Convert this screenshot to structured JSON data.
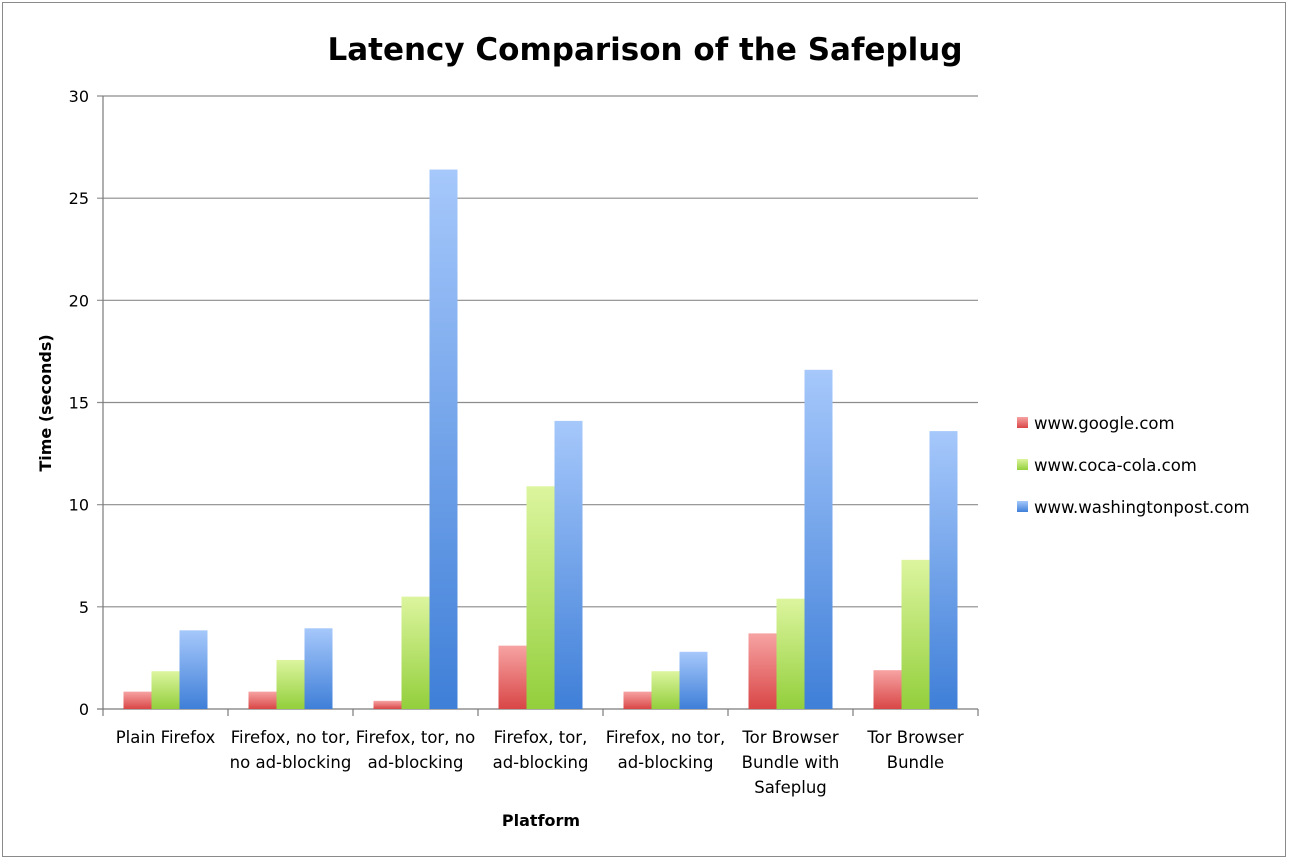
{
  "chart_data": {
    "type": "bar",
    "title": "Latency Comparison of the Safeplug",
    "xlabel": "Platform",
    "ylabel": "Time (seconds)",
    "ylim": [
      0,
      30
    ],
    "yticks": [
      "0",
      "5",
      "10",
      "15",
      "20",
      "25",
      "30"
    ],
    "grid": true,
    "legend_position": "right",
    "categories": [
      [
        "Plain Firefox"
      ],
      [
        "Firefox, no tor,",
        "no ad-blocking"
      ],
      [
        "Firefox, tor, no",
        "ad-blocking"
      ],
      [
        "Firefox, tor,",
        "ad-blocking"
      ],
      [
        "Firefox, no tor,",
        "ad-blocking"
      ],
      [
        "Tor Browser",
        "Bundle with",
        "Safeplug"
      ],
      [
        "Tor Browser",
        "Bundle"
      ]
    ],
    "series": [
      {
        "name": "www.google.com",
        "color_light": "#f7a3a3",
        "color_dark": "#d94646",
        "values": [
          0.85,
          0.85,
          0.4,
          3.1,
          0.85,
          3.7,
          1.9
        ]
      },
      {
        "name": "www.coca-cola.com",
        "color_light": "#dcf59e",
        "color_dark": "#93cf3c",
        "values": [
          1.85,
          2.4,
          5.5,
          10.9,
          1.85,
          5.4,
          7.3
        ]
      },
      {
        "name": "www.washingtonpost.com",
        "color_light": "#a6c8fb",
        "color_dark": "#3f7fd8",
        "values": [
          3.85,
          3.95,
          26.4,
          14.1,
          2.8,
          16.6,
          13.6
        ]
      }
    ]
  }
}
